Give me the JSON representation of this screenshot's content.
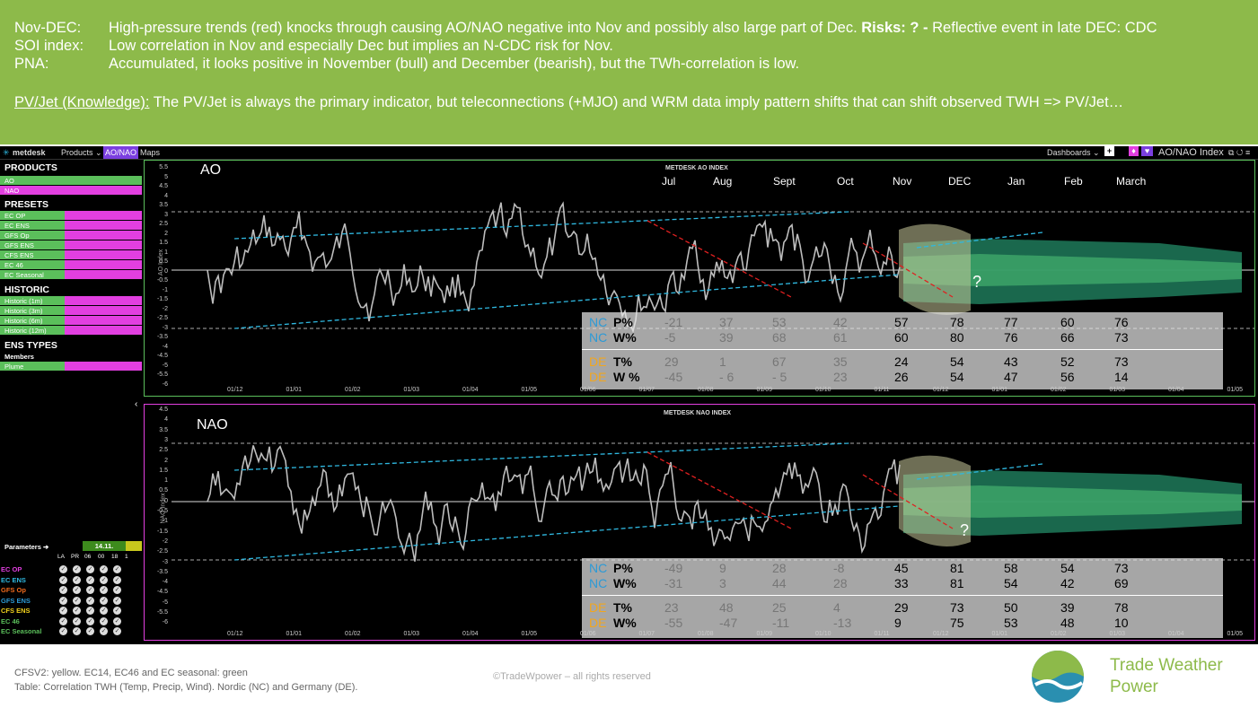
{
  "banner": {
    "rows": [
      {
        "key": "Nov-DEC:",
        "text": "High-pressure trends (red) knocks through causing AO/NAO negative into Nov and possibly also large part of Dec.",
        "bold": "Risks: ? -",
        "tail": "Reflective event in late DEC: CDC"
      },
      {
        "key": "SOI index:",
        "text": "Low correlation in Nov and especially Dec but implies an N-CDC risk for Nov.",
        "bold": "",
        "tail": ""
      },
      {
        "key": "PNA:",
        "text": "Accumulated, it looks positive in November (bull) and December (bearish), but the TWh-correlation is low.",
        "bold": "",
        "tail": ""
      }
    ],
    "pvjet_label": "PV/Jet (Knowledge):",
    "pvjet_text": "The PV/Jet is always the primary indicator, but teleconnections (+MJO) and WRM data imply pattern shifts that can shift observed TWH => PV/Jet…"
  },
  "app": {
    "logo": "metdesk",
    "products_menu": "Products ⌄",
    "ao_nao_tab": "AO/NAO",
    "maps_tab": "Maps",
    "dashboards_menu": "Dashboards ⌄",
    "window_title": "AO/NAO Index",
    "colors": {
      "green": "#5bbf5b",
      "magenta": "#e23fe0",
      "cyan": "#2fb8e0"
    }
  },
  "sidebar": {
    "products_heading": "PRODUCTS",
    "products": [
      "AO",
      "NAO"
    ],
    "presets_heading": "PRESETS",
    "presets": [
      "EC OP",
      "EC ENS",
      "GFS Op",
      "GFS ENS",
      "CFS ENS",
      "EC 46",
      "EC Seasonal"
    ],
    "historic_heading": "HISTORIC",
    "historic": [
      "Historic (1m)",
      "Historic (3m)",
      "Historic (6m)",
      "Historic (12m)"
    ],
    "ens_heading": "ENS TYPES",
    "ens_types": [
      "Members",
      "Plume"
    ],
    "params_label": "Parameters ➔",
    "params_date": "14.11.",
    "param_cols": [
      "LA",
      "PR",
      "06",
      "00",
      "18",
      "1"
    ],
    "param_rows": [
      {
        "name": "EC OP",
        "color": "#e23fe0"
      },
      {
        "name": "EC ENS",
        "color": "#2fb8e0"
      },
      {
        "name": "GFS Op",
        "color": "#f26b1d"
      },
      {
        "name": "GFS ENS",
        "color": "#2d9ad6"
      },
      {
        "name": "CFS ENS",
        "color": "#f2d21d"
      },
      {
        "name": "EC 46",
        "color": "#5bbf5b"
      },
      {
        "name": "EC Seasonal",
        "color": "#5bbf5b"
      }
    ]
  },
  "ao": {
    "label": "AO",
    "chart_title": "METDESK AO INDEX",
    "yaxis_title": "AO Index",
    "months": [
      "Jul",
      "Aug",
      "Sept",
      "Oct",
      "Nov",
      "DEC",
      "Jan",
      "Feb",
      "March"
    ],
    "question": "?",
    "table": {
      "rows": [
        {
          "prefix": "NC",
          "metric": "P%",
          "hist": [
            "-21",
            "37",
            "53",
            "42"
          ],
          "fc": [
            "57",
            "78",
            "77",
            "60",
            "76"
          ]
        },
        {
          "prefix": "NC",
          "metric": "W%",
          "hist": [
            "-5",
            "39",
            "68",
            "61"
          ],
          "fc": [
            "60",
            "80",
            "76",
            "66",
            "73"
          ]
        },
        {
          "prefix": "DE",
          "metric": "T%",
          "hist": [
            "29",
            "1",
            "67",
            "35"
          ],
          "fc": [
            "24",
            "54",
            "43",
            "52",
            "73"
          ]
        },
        {
          "prefix": "DE",
          "metric": "W %",
          "hist": [
            "-45",
            "- 6",
            "- 5",
            "23"
          ],
          "fc": [
            "26",
            "54",
            "47",
            "56",
            "14"
          ]
        }
      ]
    }
  },
  "nao": {
    "label": "NAO",
    "chart_title": "METDESK NAO INDEX",
    "yaxis_title": "NAO Index",
    "question": "?",
    "table": {
      "rows": [
        {
          "prefix": "NC",
          "metric": "P%",
          "hist": [
            "-49",
            "9",
            "28",
            "-8"
          ],
          "fc": [
            "45",
            "81",
            "58",
            "54",
            "73"
          ]
        },
        {
          "prefix": "NC",
          "metric": "W%",
          "hist": [
            "-31",
            "3",
            "44",
            "28"
          ],
          "fc": [
            "33",
            "81",
            "54",
            "42",
            "69"
          ]
        },
        {
          "prefix": "DE",
          "metric": "T%",
          "hist": [
            "23",
            "48",
            "25",
            "4"
          ],
          "fc": [
            "29",
            "73",
            "50",
            "39",
            "78"
          ]
        },
        {
          "prefix": "DE",
          "metric": "W%",
          "hist": [
            "-55",
            "-47",
            "-11",
            "-13"
          ],
          "fc": [
            "9",
            "75",
            "53",
            "48",
            "10"
          ]
        }
      ]
    }
  },
  "ao_y_ticks": [
    "5.5",
    "5",
    "4.5",
    "4",
    "3.5",
    "3",
    "2.5",
    "2",
    "1.5",
    "1",
    "0.5",
    "0",
    "-0.5",
    "-1",
    "-1.5",
    "-2",
    "-2.5",
    "-3",
    "-3.5",
    "-4",
    "-4.5",
    "-5",
    "-5.5",
    "-6"
  ],
  "nao_y_ticks": [
    "4.5",
    "4",
    "3.5",
    "3",
    "2.5",
    "2",
    "1.5",
    "1",
    "0.5",
    "0",
    "-0.5",
    "-1",
    "-1.5",
    "-2",
    "-2.5",
    "-3",
    "-3.5",
    "-4",
    "-4.5",
    "-5",
    "-5.5",
    "-6"
  ],
  "x_ticks": [
    "01/12",
    "01/01",
    "01/02",
    "01/03",
    "01/04",
    "01/05",
    "01/06",
    "01/07",
    "01/08",
    "01/09",
    "01/10",
    "01/11",
    "01/12",
    "01/01",
    "01/02",
    "01/03",
    "01/04",
    "01/05"
  ],
  "footer": {
    "line1": "CFSV2: yellow. EC14, EC46 and EC seasonal: green",
    "line2": "Table: Correlation TWH (Temp, Precip, Wind). Nordic (NC) and Germany (DE).",
    "copyright": "©TradeWpower – all rights reserved",
    "brand_line1": "Trade Weather",
    "brand_line2": "Power"
  }
}
